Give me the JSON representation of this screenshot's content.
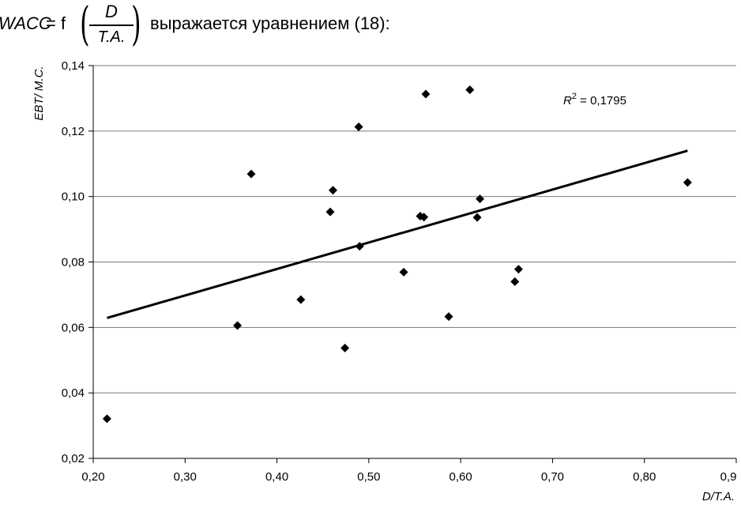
{
  "intro": {
    "lhs": "WACC",
    "eq": "= f",
    "frac_num": "D",
    "frac_den": "T.A.",
    "rest": "выражается уравнением (18):"
  },
  "chart_data": {
    "type": "scatter",
    "xlabel": "D/T.A.",
    "ylabel": "EBT/ M.C.",
    "xlim": [
      0.2,
      0.9
    ],
    "ylim": [
      0.02,
      0.14
    ],
    "x_ticks": [
      "0,20",
      "0,30",
      "0,40",
      "0,50",
      "0,60",
      "0,70",
      "0,80",
      "0,9"
    ],
    "x_tick_values": [
      0.2,
      0.3,
      0.4,
      0.5,
      0.6,
      0.7,
      0.8,
      0.9
    ],
    "y_ticks": [
      "0,02",
      "0,04",
      "0,06",
      "0,08",
      "0,10",
      "0,12",
      "0,14"
    ],
    "y_tick_values": [
      0.02,
      0.04,
      0.06,
      0.08,
      0.1,
      0.12,
      0.14
    ],
    "grid": "horizontal",
    "annotation": {
      "label": "R",
      "sup": "2",
      "value": " = 0,1795"
    },
    "points": [
      {
        "x": 0.215,
        "y": 0.0321
      },
      {
        "x": 0.357,
        "y": 0.0606
      },
      {
        "x": 0.372,
        "y": 0.1069
      },
      {
        "x": 0.426,
        "y": 0.0685
      },
      {
        "x": 0.458,
        "y": 0.0953
      },
      {
        "x": 0.461,
        "y": 0.1019
      },
      {
        "x": 0.474,
        "y": 0.0537
      },
      {
        "x": 0.489,
        "y": 0.1213
      },
      {
        "x": 0.49,
        "y": 0.0848
      },
      {
        "x": 0.538,
        "y": 0.0769
      },
      {
        "x": 0.556,
        "y": 0.094
      },
      {
        "x": 0.56,
        "y": 0.0937
      },
      {
        "x": 0.562,
        "y": 0.1313
      },
      {
        "x": 0.587,
        "y": 0.0633
      },
      {
        "x": 0.61,
        "y": 0.1326
      },
      {
        "x": 0.618,
        "y": 0.0936
      },
      {
        "x": 0.621,
        "y": 0.0993
      },
      {
        "x": 0.659,
        "y": 0.074
      },
      {
        "x": 0.663,
        "y": 0.0778
      },
      {
        "x": 0.847,
        "y": 0.1043
      }
    ],
    "trendline": {
      "x": [
        0.215,
        0.847
      ],
      "y": [
        0.0629,
        0.114
      ]
    }
  }
}
